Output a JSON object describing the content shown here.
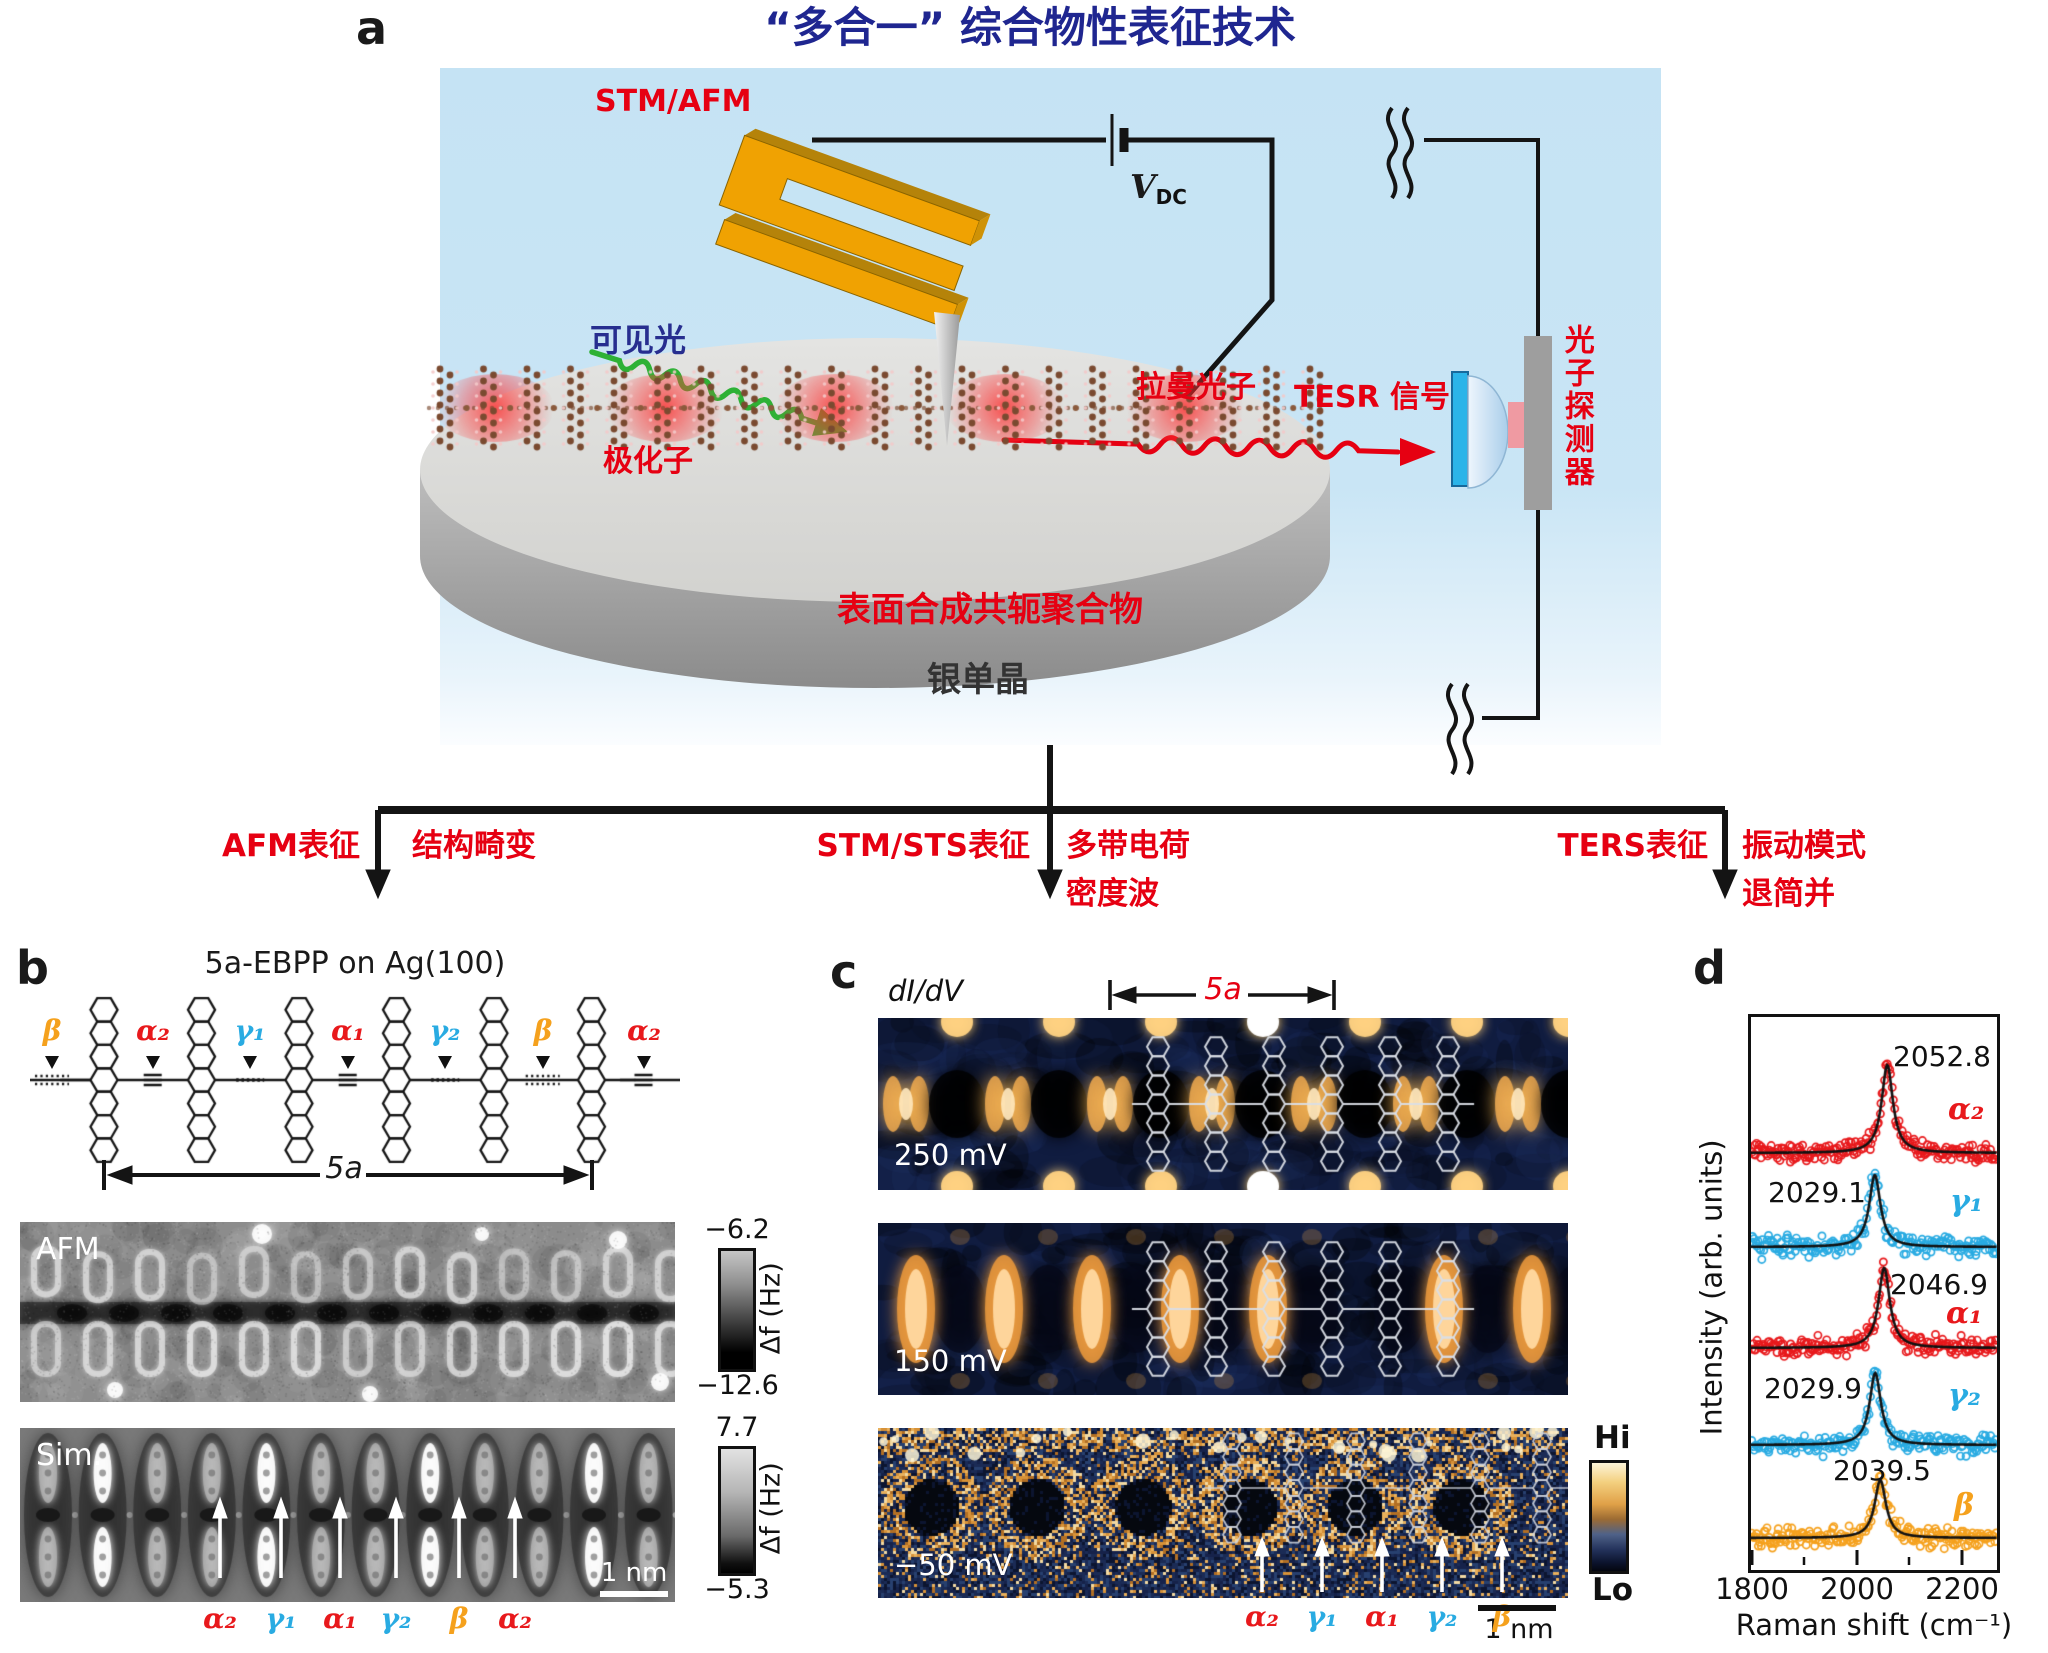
{
  "panel_a": {
    "label": "a",
    "title": "“多合一” 综合物性表征技术",
    "probe_label": "STM/AFM",
    "bias_v": "V",
    "bias_sub": "DC",
    "visible_light": "可见光",
    "polaron": "极化子",
    "raman_photon": "拉曼光子",
    "tesr_signal": "TESR 信号",
    "photon_detector": "光子探测器",
    "polymer": "表面合成共轭聚合物",
    "substrate": "银单晶"
  },
  "flow": {
    "branches": [
      {
        "method": "AFM表征",
        "line1": "结构畸变",
        "line2": ""
      },
      {
        "method": "STM/STS表征",
        "line1": "多带电荷",
        "line2": "密度波"
      },
      {
        "method": "TERS表征",
        "line1": "振动模式",
        "line2": "退简并"
      }
    ]
  },
  "panel_b": {
    "label": "b",
    "title": "5a-EBPP on Ag(100)",
    "bond_labels": [
      {
        "t": "β",
        "c": "#f5a11d"
      },
      {
        "t": "α₂",
        "c": "#e8191c"
      },
      {
        "t": "γ₁",
        "c": "#29abe2"
      },
      {
        "t": "α₁",
        "c": "#e8191c"
      },
      {
        "t": "γ₂",
        "c": "#29abe2"
      },
      {
        "t": "β",
        "c": "#f5a11d"
      },
      {
        "t": "α₂",
        "c": "#e8191c"
      }
    ],
    "span_label": "5a",
    "afm_title": "AFM",
    "sim_title": "Sim.",
    "afm_scale": {
      "top": "−6.2",
      "bottom": "−12.6",
      "unit": "Δf (Hz)"
    },
    "sim_scale": {
      "top": "7.7",
      "bottom": "−5.3",
      "unit": "Δf (Hz)"
    },
    "scalebar": "1 nm",
    "mode_labels": [
      {
        "t": "α₂",
        "c": "#e8191c"
      },
      {
        "t": "γ₁",
        "c": "#29abe2"
      },
      {
        "t": "α₁",
        "c": "#e8191c"
      },
      {
        "t": "γ₂",
        "c": "#29abe2"
      },
      {
        "t": "β",
        "c": "#f5a11d"
      },
      {
        "t": "α₂",
        "c": "#e8191c"
      }
    ]
  },
  "panel_c": {
    "label": "c",
    "map_label": "dI/dV",
    "span_label": "5a",
    "maps": [
      {
        "bias": "250 mV"
      },
      {
        "bias": "150 mV"
      },
      {
        "bias": "−50 mV"
      }
    ],
    "colorbar": {
      "top": "Hi",
      "bottom": "Lo"
    },
    "scalebar": "1 nm",
    "mode_labels": [
      {
        "t": "α₂",
        "c": "#e8191c"
      },
      {
        "t": "γ₁",
        "c": "#29abe2"
      },
      {
        "t": "α₁",
        "c": "#e8191c"
      },
      {
        "t": "γ₂",
        "c": "#29abe2"
      },
      {
        "t": "β",
        "c": "#f5a11d"
      }
    ]
  },
  "panel_d": {
    "label": "d"
  },
  "chart_data": {
    "type": "scatter",
    "title": "",
    "xlabel": "Raman shift (cm⁻¹)",
    "ylabel": "Intensity (arb. units)",
    "xlim": [
      1793,
      2262
    ],
    "xticks": [
      1800,
      2000,
      2200
    ],
    "xticks_minor": [
      1900,
      2100
    ],
    "grid": false,
    "legend_position": "inline-right",
    "series": [
      {
        "name": "α₂",
        "color": "#e8191c",
        "peak_center": 2052.8,
        "peak_label": "2052.8",
        "fwhm": 26,
        "label_side": "right"
      },
      {
        "name": "γ₁",
        "color": "#29abe2",
        "peak_center": 2029.1,
        "peak_label": "2029.1",
        "fwhm": 26,
        "label_side": "left"
      },
      {
        "name": "α₁",
        "color": "#e8191c",
        "peak_center": 2046.9,
        "peak_label": "2046.9",
        "fwhm": 26,
        "label_side": "right"
      },
      {
        "name": "γ₂",
        "color": "#29abe2",
        "peak_center": 2029.9,
        "peak_label": "2029.9",
        "fwhm": 26,
        "label_side": "left"
      },
      {
        "name": "β",
        "color": "#f5a11d",
        "peak_center": 2039.5,
        "peak_label": "2039.5",
        "fwhm": 26,
        "label_side": "left"
      }
    ]
  },
  "colors": {
    "accent_red": "#e60012",
    "title_blue": "#1f2690",
    "bg_blue": "#c5e3f4",
    "gold": "#f0a202",
    "green": "#2eb135",
    "cyan": "#29abe2",
    "orange": "#f5a11d"
  }
}
